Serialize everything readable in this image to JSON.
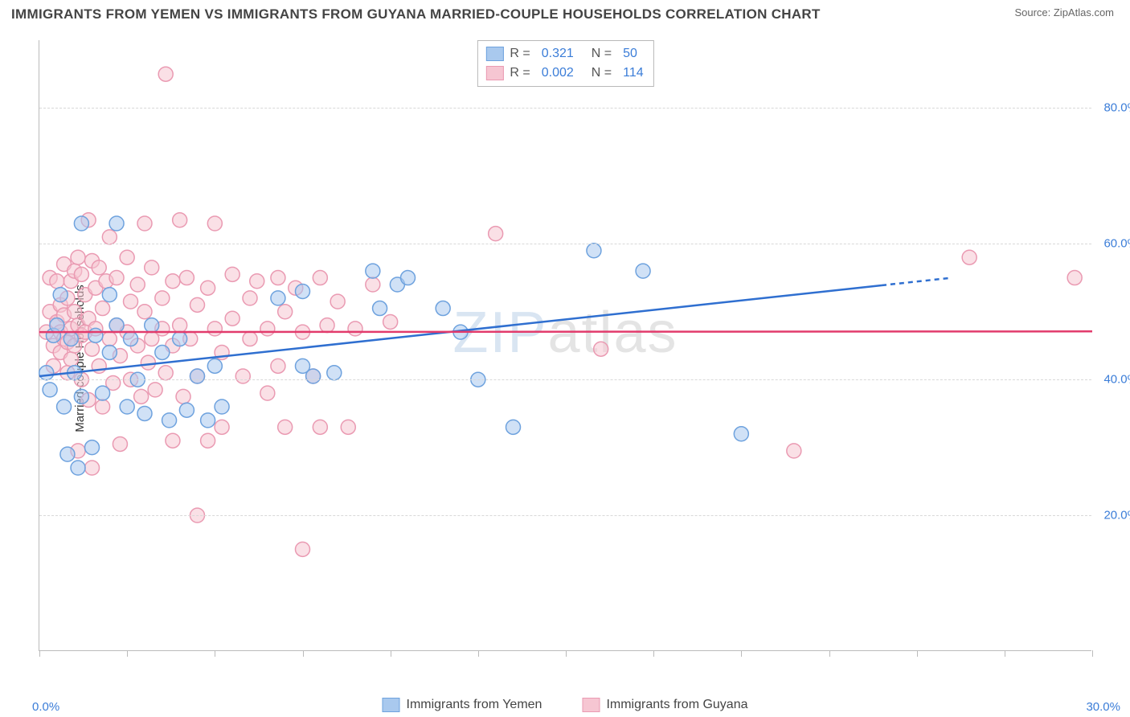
{
  "title": "IMMIGRANTS FROM YEMEN VS IMMIGRANTS FROM GUYANA MARRIED-COUPLE HOUSEHOLDS CORRELATION CHART",
  "source": "Source: ZipAtlas.com",
  "watermark_zip": "ZIP",
  "watermark_atlas": "atlas",
  "chart": {
    "type": "scatter",
    "xlim": [
      0,
      30
    ],
    "ylim": [
      0,
      90
    ],
    "x_ticks": [
      0,
      2.5,
      5,
      7.5,
      10,
      12.5,
      15,
      17.5,
      20,
      22.5,
      25,
      27.5,
      30
    ],
    "x_tick_labels": {
      "0": "0.0%",
      "30": "30.0%"
    },
    "y_ticks": [
      20,
      40,
      60,
      80
    ],
    "y_tick_labels": {
      "20": "20.0%",
      "40": "40.0%",
      "60": "60.0%",
      "80": "80.0%"
    },
    "y_axis_title": "Married-couple Households",
    "background_color": "#ffffff",
    "grid_color": "#d8d8d8",
    "axis_color": "#bbbbbb",
    "tick_label_color": "#3b7dd8",
    "marker_radius": 9,
    "marker_stroke_width": 1.5,
    "line_width": 2.5,
    "series": [
      {
        "key": "yemen",
        "label": "Immigrants from Yemen",
        "fill": "#a9c9ee",
        "stroke": "#6ea2de",
        "fill_opacity": 0.55,
        "R": "0.321",
        "N": "50",
        "trend": {
          "x1": 0,
          "y1": 40.5,
          "x2": 26,
          "y2": 55.0,
          "solid_until_x": 24,
          "color": "#2f6fd0"
        },
        "points": [
          [
            0.2,
            41.0
          ],
          [
            0.4,
            46.5
          ],
          [
            0.3,
            38.5
          ],
          [
            0.6,
            52.5
          ],
          [
            0.5,
            48.0
          ],
          [
            0.7,
            36.0
          ],
          [
            0.8,
            29.0
          ],
          [
            0.9,
            46.0
          ],
          [
            1.0,
            41.0
          ],
          [
            1.1,
            27.0
          ],
          [
            1.2,
            63.0
          ],
          [
            1.2,
            37.5
          ],
          [
            1.5,
            30.0
          ],
          [
            1.6,
            46.5
          ],
          [
            1.8,
            38.0
          ],
          [
            2.0,
            52.5
          ],
          [
            2.0,
            44.0
          ],
          [
            2.2,
            48.0
          ],
          [
            2.2,
            63.0
          ],
          [
            2.5,
            36.0
          ],
          [
            2.6,
            46.0
          ],
          [
            2.8,
            40.0
          ],
          [
            3.0,
            35.0
          ],
          [
            3.2,
            48.0
          ],
          [
            3.5,
            44.0
          ],
          [
            3.7,
            34.0
          ],
          [
            4.0,
            46.0
          ],
          [
            4.2,
            35.5
          ],
          [
            4.5,
            40.5
          ],
          [
            4.8,
            34.0
          ],
          [
            5.0,
            42.0
          ],
          [
            5.2,
            36.0
          ],
          [
            6.8,
            52.0
          ],
          [
            7.5,
            53.0
          ],
          [
            7.5,
            42.0
          ],
          [
            7.8,
            40.5
          ],
          [
            8.4,
            41.0
          ],
          [
            9.5,
            56.0
          ],
          [
            9.7,
            50.5
          ],
          [
            10.2,
            54.0
          ],
          [
            10.5,
            55.0
          ],
          [
            11.5,
            50.5
          ],
          [
            12.0,
            47.0
          ],
          [
            12.5,
            40.0
          ],
          [
            13.5,
            33.0
          ],
          [
            15.8,
            59.0
          ],
          [
            17.2,
            56.0
          ],
          [
            20.0,
            32.0
          ]
        ]
      },
      {
        "key": "guyana",
        "label": "Immigrants from Guyana",
        "fill": "#f6c6d2",
        "stroke": "#ea9ab2",
        "fill_opacity": 0.55,
        "R": "0.002",
        "N": "114",
        "trend": {
          "x1": 0,
          "y1": 47.0,
          "x2": 30,
          "y2": 47.1,
          "solid_until_x": 30,
          "color": "#e23b6c"
        },
        "points": [
          [
            0.2,
            47.0
          ],
          [
            0.3,
            55.0
          ],
          [
            0.3,
            50.0
          ],
          [
            0.4,
            45.0
          ],
          [
            0.4,
            42.0
          ],
          [
            0.5,
            54.5
          ],
          [
            0.5,
            48.5
          ],
          [
            0.6,
            47.0
          ],
          [
            0.6,
            51.0
          ],
          [
            0.6,
            44.0
          ],
          [
            0.7,
            57.0
          ],
          [
            0.7,
            49.5
          ],
          [
            0.7,
            46.0
          ],
          [
            0.8,
            52.0
          ],
          [
            0.8,
            45.5
          ],
          [
            0.8,
            41.0
          ],
          [
            0.9,
            54.5
          ],
          [
            0.9,
            47.5
          ],
          [
            0.9,
            43.0
          ],
          [
            1.0,
            56.0
          ],
          [
            1.0,
            50.0
          ],
          [
            1.0,
            45.0
          ],
          [
            1.1,
            58.0
          ],
          [
            1.1,
            48.0
          ],
          [
            1.1,
            29.5
          ],
          [
            1.2,
            55.5
          ],
          [
            1.2,
            46.5
          ],
          [
            1.2,
            40.0
          ],
          [
            1.3,
            52.5
          ],
          [
            1.3,
            47.0
          ],
          [
            1.4,
            63.5
          ],
          [
            1.4,
            49.0
          ],
          [
            1.4,
            37.0
          ],
          [
            1.5,
            57.5
          ],
          [
            1.5,
            44.5
          ],
          [
            1.5,
            27.0
          ],
          [
            1.6,
            53.5
          ],
          [
            1.6,
            47.5
          ],
          [
            1.7,
            56.5
          ],
          [
            1.7,
            42.0
          ],
          [
            1.8,
            50.5
          ],
          [
            1.8,
            36.0
          ],
          [
            1.9,
            54.5
          ],
          [
            2.0,
            61.0
          ],
          [
            2.0,
            46.0
          ],
          [
            2.1,
            39.5
          ],
          [
            2.2,
            55.0
          ],
          [
            2.2,
            48.0
          ],
          [
            2.3,
            43.5
          ],
          [
            2.3,
            30.5
          ],
          [
            2.5,
            58.0
          ],
          [
            2.5,
            47.0
          ],
          [
            2.6,
            51.5
          ],
          [
            2.6,
            40.0
          ],
          [
            2.8,
            54.0
          ],
          [
            2.8,
            45.0
          ],
          [
            2.9,
            37.5
          ],
          [
            3.0,
            63.0
          ],
          [
            3.0,
            50.0
          ],
          [
            3.1,
            42.5
          ],
          [
            3.2,
            56.5
          ],
          [
            3.2,
            46.0
          ],
          [
            3.3,
            38.5
          ],
          [
            3.5,
            52.0
          ],
          [
            3.5,
            47.5
          ],
          [
            3.6,
            85.0
          ],
          [
            3.6,
            41.0
          ],
          [
            3.8,
            54.5
          ],
          [
            3.8,
            45.0
          ],
          [
            3.8,
            31.0
          ],
          [
            4.0,
            63.5
          ],
          [
            4.0,
            48.0
          ],
          [
            4.1,
            37.5
          ],
          [
            4.2,
            55.0
          ],
          [
            4.3,
            46.0
          ],
          [
            4.5,
            51.0
          ],
          [
            4.5,
            40.5
          ],
          [
            4.5,
            20.0
          ],
          [
            4.8,
            53.5
          ],
          [
            4.8,
            31.0
          ],
          [
            5.0,
            63.0
          ],
          [
            5.0,
            47.5
          ],
          [
            5.2,
            33.0
          ],
          [
            5.2,
            44.0
          ],
          [
            5.5,
            55.5
          ],
          [
            5.5,
            49.0
          ],
          [
            5.8,
            40.5
          ],
          [
            6.0,
            52.0
          ],
          [
            6.0,
            46.0
          ],
          [
            6.2,
            54.5
          ],
          [
            6.5,
            47.5
          ],
          [
            6.5,
            38.0
          ],
          [
            6.8,
            55.0
          ],
          [
            6.8,
            42.0
          ],
          [
            7.0,
            50.0
          ],
          [
            7.0,
            33.0
          ],
          [
            7.3,
            53.5
          ],
          [
            7.5,
            47.0
          ],
          [
            7.5,
            15.0
          ],
          [
            7.8,
            40.5
          ],
          [
            8.0,
            55.0
          ],
          [
            8.0,
            33.0
          ],
          [
            8.2,
            48.0
          ],
          [
            8.5,
            51.5
          ],
          [
            8.8,
            33.0
          ],
          [
            9.0,
            47.5
          ],
          [
            9.5,
            54.0
          ],
          [
            10.0,
            48.5
          ],
          [
            13.0,
            61.5
          ],
          [
            16.0,
            44.5
          ],
          [
            21.5,
            29.5
          ],
          [
            26.5,
            58.0
          ],
          [
            29.5,
            55.0
          ]
        ]
      }
    ]
  }
}
